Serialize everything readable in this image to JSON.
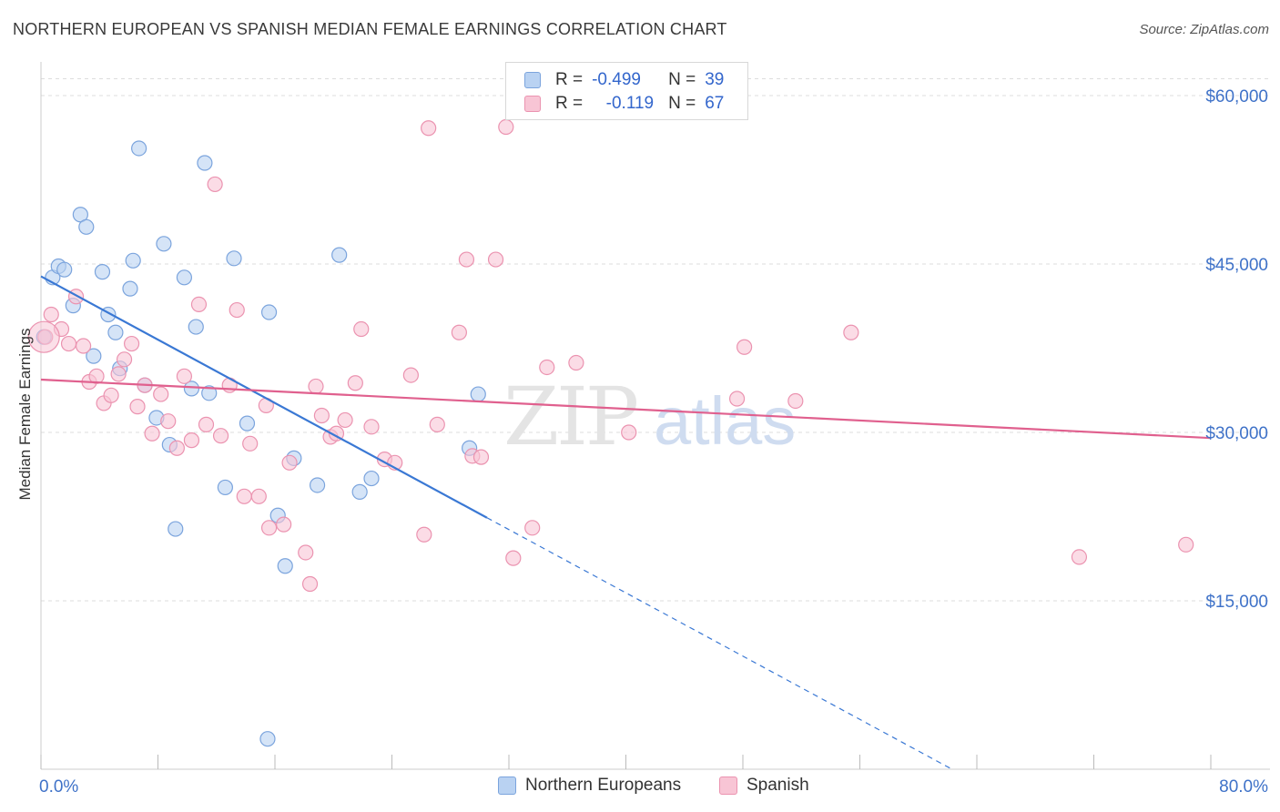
{
  "title": "NORTHERN EUROPEAN VS SPANISH MEDIAN FEMALE EARNINGS CORRELATION CHART",
  "source": "Source: ZipAtlas.com",
  "watermark": {
    "zip": "ZIP",
    "atlas": "atlas"
  },
  "legend": {
    "r_label": "R =",
    "n_label": "N =",
    "rows": [
      {
        "name": "Northern Europeans",
        "r": "-0.499",
        "n": "39"
      },
      {
        "name": "Spanish",
        "r": "-0.119",
        "n": "67"
      }
    ]
  },
  "colors": {
    "blue_fill": "#b9d2f2",
    "blue_stroke": "#7ba4dd",
    "blue_line": "#3a78d4",
    "pink_fill": "#f8c5d5",
    "pink_stroke": "#eb93b0",
    "pink_line": "#e0608e",
    "axis_text": "#3f72c8",
    "grid": "#dddddd"
  },
  "chart_data": {
    "type": "scatter",
    "title": "NORTHERN EUROPEAN VS SPANISH MEDIAN FEMALE EARNINGS CORRELATION CHART",
    "xlabel": "",
    "ylabel": "Median Female Earnings",
    "xlim": [
      0,
      80
    ],
    "ylim": [
      0,
      63000
    ],
    "x_tick_labels": [
      "0.0%",
      "80.0%"
    ],
    "y_ticks": [
      15000,
      30000,
      45000,
      60000
    ],
    "y_tick_labels": [
      "$15,000",
      "$30,000",
      "$45,000",
      "$60,000"
    ],
    "series": [
      {
        "name": "Northern Europeans",
        "color": "blue",
        "points": [
          [
            0.2,
            38500
          ],
          [
            0.8,
            43800
          ],
          [
            1.2,
            44800
          ],
          [
            1.6,
            44500
          ],
          [
            2.2,
            41300
          ],
          [
            2.7,
            49400
          ],
          [
            3.1,
            48300
          ],
          [
            3.6,
            36800
          ],
          [
            4.2,
            44300
          ],
          [
            4.6,
            40500
          ],
          [
            5.1,
            38900
          ],
          [
            5.4,
            35700
          ],
          [
            6.1,
            42800
          ],
          [
            6.3,
            45300
          ],
          [
            6.7,
            55300
          ],
          [
            7.1,
            34200
          ],
          [
            7.9,
            31300
          ],
          [
            8.4,
            46800
          ],
          [
            8.8,
            28900
          ],
          [
            9.2,
            21400
          ],
          [
            9.8,
            43800
          ],
          [
            10.3,
            33900
          ],
          [
            10.6,
            39400
          ],
          [
            11.2,
            54000
          ],
          [
            11.5,
            33500
          ],
          [
            12.6,
            25100
          ],
          [
            13.2,
            45500
          ],
          [
            14.1,
            30800
          ],
          [
            15.6,
            40700
          ],
          [
            16.2,
            22600
          ],
          [
            16.7,
            18100
          ],
          [
            17.3,
            27700
          ],
          [
            18.9,
            25300
          ],
          [
            20.4,
            45800
          ],
          [
            21.8,
            24700
          ],
          [
            22.6,
            25900
          ],
          [
            29.3,
            28600
          ],
          [
            29.9,
            33400
          ],
          [
            15.5,
            2700
          ]
        ],
        "trend": {
          "x0": 0,
          "y0": 43900,
          "x1": 30.5,
          "y1": 22400,
          "dash_x1": 62.3,
          "dash_y1": 0
        }
      },
      {
        "name": "Spanish",
        "color": "pink",
        "points": [
          [
            0.3,
            38500
          ],
          [
            0.7,
            40500
          ],
          [
            1.4,
            39200
          ],
          [
            1.9,
            37900
          ],
          [
            2.4,
            42100
          ],
          [
            2.9,
            37700
          ],
          [
            3.3,
            34500
          ],
          [
            3.8,
            35000
          ],
          [
            4.3,
            32600
          ],
          [
            4.8,
            33300
          ],
          [
            5.3,
            35200
          ],
          [
            5.7,
            36500
          ],
          [
            6.2,
            37900
          ],
          [
            6.6,
            32300
          ],
          [
            7.1,
            34200
          ],
          [
            7.6,
            29900
          ],
          [
            8.2,
            33400
          ],
          [
            8.7,
            31000
          ],
          [
            9.3,
            28600
          ],
          [
            9.8,
            35000
          ],
          [
            10.3,
            29300
          ],
          [
            10.8,
            41400
          ],
          [
            11.3,
            30700
          ],
          [
            11.9,
            52100
          ],
          [
            12.3,
            29700
          ],
          [
            12.9,
            34200
          ],
          [
            13.4,
            40900
          ],
          [
            13.9,
            24300
          ],
          [
            14.3,
            29000
          ],
          [
            14.9,
            24300
          ],
          [
            15.4,
            32400
          ],
          [
            15.6,
            21500
          ],
          [
            16.6,
            21800
          ],
          [
            17.0,
            27300
          ],
          [
            18.1,
            19300
          ],
          [
            18.4,
            16500
          ],
          [
            18.8,
            34100
          ],
          [
            19.2,
            31500
          ],
          [
            19.8,
            29600
          ],
          [
            20.2,
            29900
          ],
          [
            20.8,
            31100
          ],
          [
            21.5,
            34400
          ],
          [
            21.9,
            39200
          ],
          [
            22.6,
            30500
          ],
          [
            23.5,
            27600
          ],
          [
            24.2,
            27300
          ],
          [
            25.3,
            35100
          ],
          [
            26.2,
            20900
          ],
          [
            26.5,
            57100
          ],
          [
            27.1,
            30700
          ],
          [
            28.6,
            38900
          ],
          [
            29.1,
            45400
          ],
          [
            29.5,
            27900
          ],
          [
            31.1,
            45400
          ],
          [
            31.8,
            57200
          ],
          [
            32.3,
            18800
          ],
          [
            33.6,
            21500
          ],
          [
            34.6,
            35800
          ],
          [
            36.6,
            36200
          ],
          [
            40.2,
            30000
          ],
          [
            47.6,
            33000
          ],
          [
            48.1,
            37600
          ],
          [
            51.6,
            32800
          ],
          [
            55.4,
            38900
          ],
          [
            71.0,
            18900
          ],
          [
            78.3,
            20000
          ],
          [
            30.1,
            27800
          ]
        ],
        "trend": {
          "x0": 0,
          "y0": 34700,
          "x1": 80,
          "y1": 29500
        }
      }
    ]
  }
}
